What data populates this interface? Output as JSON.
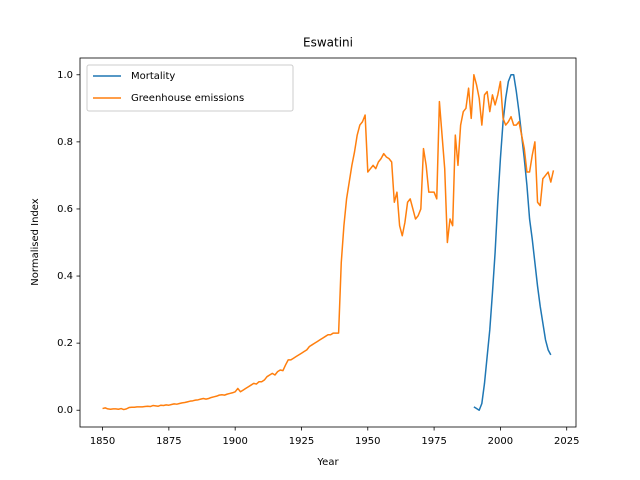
{
  "chart_data": {
    "type": "line",
    "title": "Eswatini",
    "x_label": "Year",
    "y_label": "Normalised Index",
    "xlim": [
      1841.5,
      2028.5
    ],
    "ylim": [
      -0.05,
      1.05
    ],
    "xticks": [
      1850,
      1875,
      1900,
      1925,
      1950,
      1975,
      2000,
      2025
    ],
    "yticks": [
      {
        "value": 0,
        "label": "0.0"
      },
      0.2,
      0.4,
      0.6,
      0.8,
      {
        "value": 1,
        "label": "1.0"
      }
    ],
    "legend": "upper left",
    "grid": false,
    "series": [
      {
        "name": "Mortality",
        "color": "#1f77b4",
        "x": [
          1990,
          1991,
          1992,
          1993,
          1994,
          1995,
          1996,
          1997,
          1998,
          1999,
          2000,
          2001,
          2002,
          2003,
          2004,
          2005,
          2006,
          2007,
          2008,
          2009,
          2010,
          2011,
          2012,
          2013,
          2014,
          2015,
          2016,
          2017,
          2018,
          2019
        ],
        "values": [
          0.01,
          0.005,
          0.0,
          0.02,
          0.08,
          0.16,
          0.24,
          0.35,
          0.47,
          0.62,
          0.75,
          0.86,
          0.93,
          0.98,
          1.0,
          1.0,
          0.95,
          0.89,
          0.82,
          0.75,
          0.67,
          0.57,
          0.51,
          0.44,
          0.37,
          0.31,
          0.26,
          0.21,
          0.18,
          0.165
        ]
      },
      {
        "name": "Greenhouse emissions",
        "color": "#ff7f0e",
        "x": [
          1850,
          1851,
          1852,
          1853,
          1854,
          1855,
          1856,
          1857,
          1858,
          1859,
          1860,
          1861,
          1862,
          1863,
          1864,
          1865,
          1866,
          1867,
          1868,
          1869,
          1870,
          1871,
          1872,
          1873,
          1874,
          1875,
          1876,
          1877,
          1878,
          1879,
          1880,
          1881,
          1882,
          1883,
          1884,
          1885,
          1886,
          1887,
          1888,
          1889,
          1890,
          1891,
          1892,
          1893,
          1894,
          1895,
          1896,
          1897,
          1898,
          1899,
          1900,
          1901,
          1902,
          1903,
          1904,
          1905,
          1906,
          1907,
          1908,
          1909,
          1910,
          1911,
          1912,
          1913,
          1914,
          1915,
          1916,
          1917,
          1918,
          1919,
          1920,
          1921,
          1922,
          1923,
          1924,
          1925,
          1926,
          1927,
          1928,
          1929,
          1930,
          1931,
          1932,
          1933,
          1934,
          1935,
          1936,
          1937,
          1938,
          1939,
          1940,
          1941,
          1942,
          1943,
          1944,
          1945,
          1946,
          1947,
          1948,
          1949,
          1950,
          1951,
          1952,
          1953,
          1954,
          1955,
          1956,
          1957,
          1958,
          1959,
          1960,
          1961,
          1962,
          1963,
          1964,
          1965,
          1966,
          1967,
          1968,
          1969,
          1970,
          1971,
          1972,
          1973,
          1974,
          1975,
          1976,
          1977,
          1978,
          1979,
          1980,
          1981,
          1982,
          1983,
          1984,
          1985,
          1986,
          1987,
          1988,
          1989,
          1990,
          1991,
          1992,
          1993,
          1994,
          1995,
          1996,
          1997,
          1998,
          1999,
          2000,
          2001,
          2002,
          2003,
          2004,
          2005,
          2006,
          2007,
          2008,
          2009,
          2010,
          2011,
          2012,
          2013,
          2014,
          2015,
          2016,
          2017,
          2018,
          2019,
          2020
        ],
        "values": [
          0.005,
          0.007,
          0.004,
          0.003,
          0.004,
          0.004,
          0.003,
          0.005,
          0.002,
          0.004,
          0.008,
          0.009,
          0.009,
          0.01,
          0.01,
          0.01,
          0.011,
          0.012,
          0.011,
          0.014,
          0.013,
          0.012,
          0.015,
          0.014,
          0.016,
          0.015,
          0.017,
          0.019,
          0.018,
          0.02,
          0.022,
          0.023,
          0.025,
          0.027,
          0.028,
          0.03,
          0.031,
          0.033,
          0.035,
          0.033,
          0.035,
          0.038,
          0.04,
          0.042,
          0.045,
          0.046,
          0.045,
          0.048,
          0.05,
          0.052,
          0.055,
          0.065,
          0.055,
          0.06,
          0.065,
          0.07,
          0.075,
          0.08,
          0.078,
          0.085,
          0.085,
          0.09,
          0.1,
          0.105,
          0.11,
          0.105,
          0.115,
          0.12,
          0.118,
          0.135,
          0.15,
          0.15,
          0.155,
          0.16,
          0.165,
          0.17,
          0.175,
          0.18,
          0.19,
          0.195,
          0.2,
          0.205,
          0.21,
          0.215,
          0.22,
          0.225,
          0.225,
          0.23,
          0.23,
          0.23,
          0.44,
          0.55,
          0.63,
          0.68,
          0.73,
          0.77,
          0.82,
          0.85,
          0.86,
          0.88,
          0.71,
          0.72,
          0.73,
          0.72,
          0.74,
          0.75,
          0.765,
          0.755,
          0.75,
          0.74,
          0.62,
          0.65,
          0.55,
          0.52,
          0.56,
          0.62,
          0.63,
          0.6,
          0.57,
          0.58,
          0.6,
          0.78,
          0.73,
          0.65,
          0.65,
          0.65,
          0.63,
          0.92,
          0.82,
          0.72,
          0.5,
          0.57,
          0.55,
          0.82,
          0.73,
          0.85,
          0.89,
          0.9,
          0.96,
          0.87,
          1.0,
          0.97,
          0.93,
          0.85,
          0.94,
          0.95,
          0.89,
          0.94,
          0.91,
          0.94,
          0.98,
          0.87,
          0.85,
          0.86,
          0.875,
          0.85,
          0.85,
          0.86,
          0.82,
          0.78,
          0.71,
          0.71,
          0.76,
          0.8,
          0.62,
          0.61,
          0.69,
          0.7,
          0.71,
          0.68,
          0.715
        ]
      }
    ]
  }
}
